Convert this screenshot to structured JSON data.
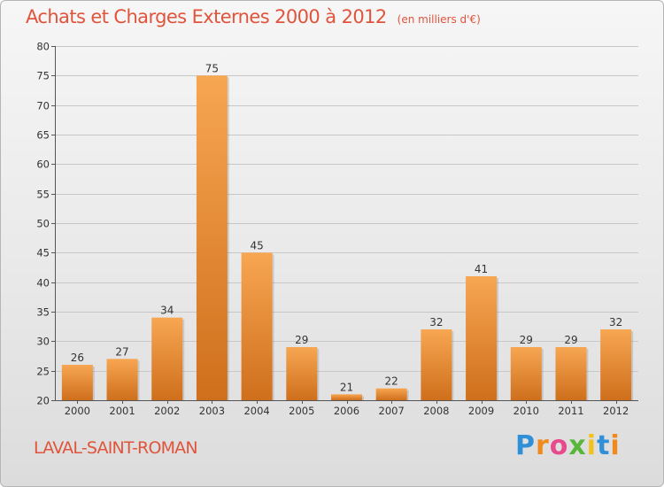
{
  "title": "Achats et Charges Externes 2000 à 2012",
  "title_unit": "(en milliers d'€)",
  "commune": "LAVAL-SAINT-ROMAN",
  "logo": {
    "text": "Proxiti",
    "letters": [
      "P",
      "r",
      "o",
      "x",
      "i",
      "t",
      "i"
    ]
  },
  "colors": {
    "accent": "#e0543c",
    "bar_light": "#f7a652",
    "bar_dark": "#cf6f1c",
    "grid": "#c8c8c8"
  },
  "chart_data": {
    "type": "bar",
    "title": "Achats et Charges Externes 2000 à 2012",
    "xlabel": "",
    "ylabel": "",
    "categories": [
      "2000",
      "2001",
      "2002",
      "2003",
      "2004",
      "2005",
      "2006",
      "2007",
      "2008",
      "2009",
      "2010",
      "2011",
      "2012"
    ],
    "values": [
      26,
      27,
      34,
      75,
      45,
      29,
      21,
      22,
      32,
      41,
      29,
      29,
      32
    ],
    "ylim": [
      20,
      80
    ],
    "yticks": [
      20,
      25,
      30,
      35,
      40,
      45,
      50,
      55,
      60,
      65,
      70,
      75,
      80
    ],
    "grid": true,
    "legend": "none"
  }
}
